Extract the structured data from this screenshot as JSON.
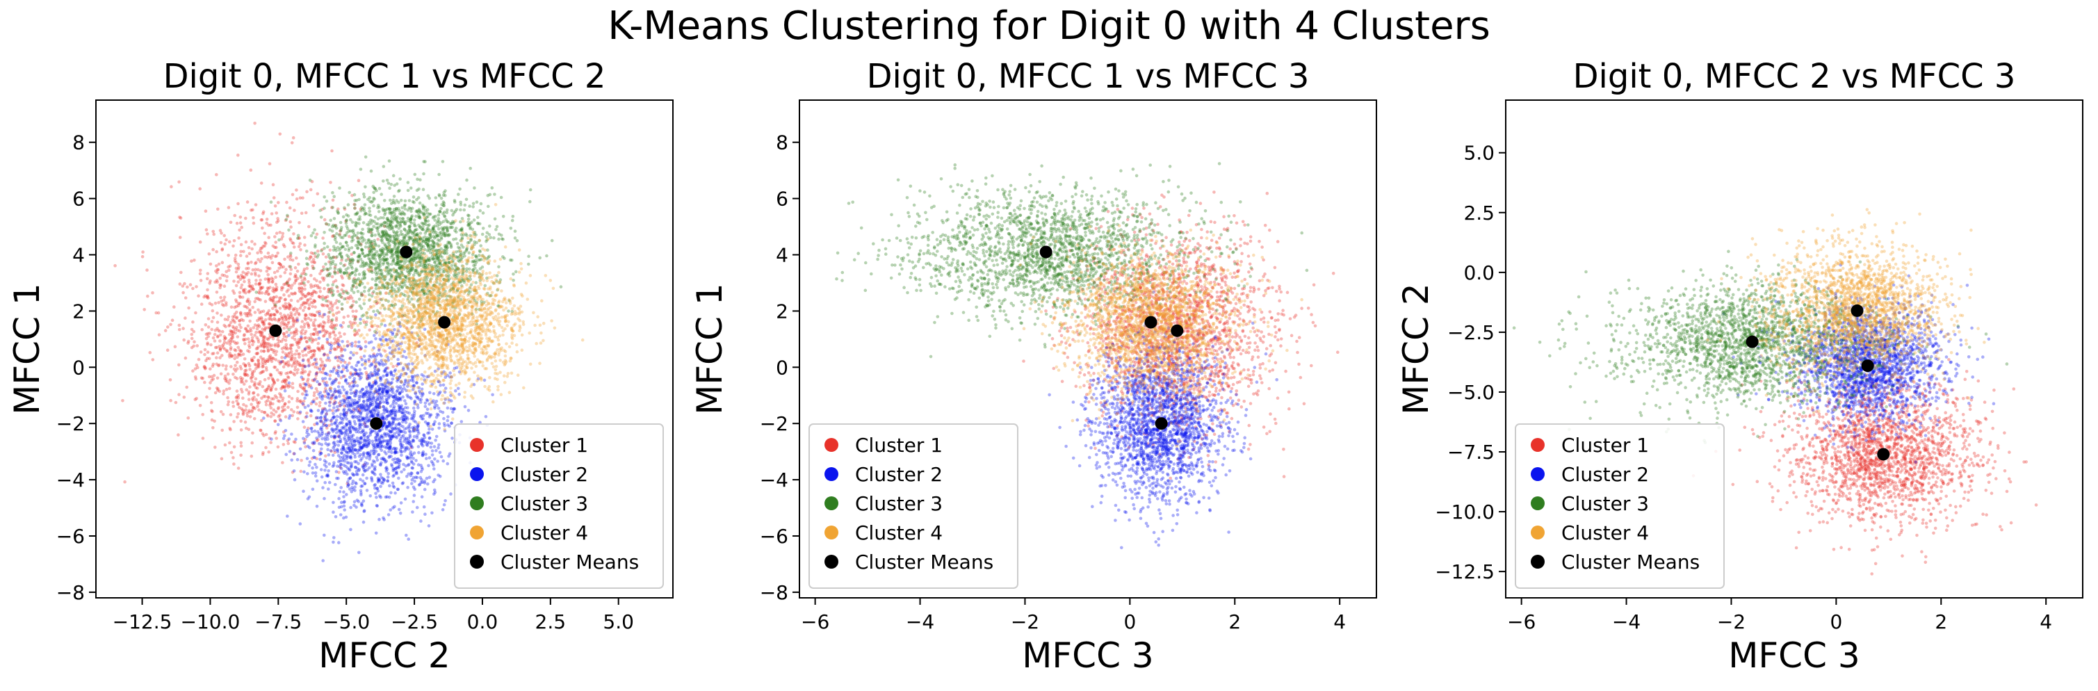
{
  "figure": {
    "suptitle": "K-Means Clustering for Digit 0 with 4 Clusters"
  },
  "colors": {
    "Cluster 1": "#e8322a",
    "Cluster 2": "#0a14ee",
    "Cluster 3": "#2f7d1f",
    "Cluster 4": "#f0a433",
    "Cluster Means": "#000000"
  },
  "chart_data": [
    {
      "type": "scatter",
      "title": "Digit 0, MFCC 1 vs MFCC 2",
      "xlabel": "MFCC 2",
      "ylabel": "MFCC 1",
      "xlim": [
        -14.2,
        7.0
      ],
      "ylim": [
        -8.2,
        9.5
      ],
      "xticks": [
        -12.5,
        -10.0,
        -7.5,
        -5.0,
        -2.5,
        0.0,
        2.5,
        5.0
      ],
      "xtick_labels": [
        "−12.5",
        "−10.0",
        "−7.5",
        "−5.0",
        "−2.5",
        "0.0",
        "2.5",
        "5.0"
      ],
      "yticks": [
        -8,
        -6,
        -4,
        -2,
        0,
        2,
        4,
        6,
        8
      ],
      "ytick_labels": [
        "−8",
        "−6",
        "−4",
        "−2",
        "0",
        "2",
        "4",
        "6",
        "8"
      ],
      "legend": {
        "position": "lower right",
        "entries": [
          "Cluster 1",
          "Cluster 2",
          "Cluster 3",
          "Cluster 4",
          "Cluster Means"
        ]
      },
      "grid": false,
      "clusters": [
        {
          "name": "Cluster 1",
          "center": [
            -7.6,
            1.3
          ],
          "spread": [
            1.7,
            2.0
          ],
          "n": 1900
        },
        {
          "name": "Cluster 2",
          "center": [
            -3.9,
            -2.0
          ],
          "spread": [
            1.3,
            1.4
          ],
          "n": 1900
        },
        {
          "name": "Cluster 3",
          "center": [
            -2.8,
            4.1
          ],
          "spread": [
            1.6,
            1.1
          ],
          "n": 1900
        },
        {
          "name": "Cluster 4",
          "center": [
            -1.4,
            1.6
          ],
          "spread": [
            1.3,
            1.2
          ],
          "n": 1900
        }
      ],
      "means": [
        [
          -7.6,
          1.3
        ],
        [
          -3.9,
          -2.0
        ],
        [
          -2.8,
          4.1
        ],
        [
          -1.4,
          1.6
        ]
      ]
    },
    {
      "type": "scatter",
      "title": "Digit 0, MFCC 1 vs MFCC 3",
      "xlabel": "MFCC 3",
      "ylabel": "MFCC 1",
      "xlim": [
        -6.3,
        4.7
      ],
      "ylim": [
        -8.2,
        9.5
      ],
      "xticks": [
        -6,
        -4,
        -2,
        0,
        2,
        4
      ],
      "xtick_labels": [
        "−6",
        "−4",
        "−2",
        "0",
        "2",
        "4"
      ],
      "yticks": [
        -8,
        -6,
        -4,
        -2,
        0,
        2,
        4,
        6,
        8
      ],
      "ytick_labels": [
        "−8",
        "−6",
        "−4",
        "−2",
        "0",
        "2",
        "4",
        "6",
        "8"
      ],
      "legend": {
        "position": "lower left",
        "entries": [
          "Cluster 1",
          "Cluster 2",
          "Cluster 3",
          "Cluster 4",
          "Cluster Means"
        ]
      },
      "grid": false,
      "clusters": [
        {
          "name": "Cluster 1",
          "center": [
            0.9,
            1.3
          ],
          "spread": [
            0.9,
            1.7
          ],
          "n": 1900
        },
        {
          "name": "Cluster 2",
          "center": [
            0.6,
            -2.0
          ],
          "spread": [
            0.6,
            1.4
          ],
          "n": 1900
        },
        {
          "name": "Cluster 3",
          "center": [
            -1.6,
            4.1
          ],
          "spread": [
            1.3,
            1.1
          ],
          "n": 1900
        },
        {
          "name": "Cluster 4",
          "center": [
            0.4,
            1.6
          ],
          "spread": [
            0.8,
            1.2
          ],
          "n": 1900
        }
      ],
      "means": [
        [
          0.9,
          1.3
        ],
        [
          0.6,
          -2.0
        ],
        [
          -1.6,
          4.1
        ],
        [
          0.4,
          1.6
        ]
      ]
    },
    {
      "type": "scatter",
      "title": "Digit 0, MFCC 2 vs MFCC 3",
      "xlabel": "MFCC 3",
      "ylabel": "MFCC 2",
      "xlim": [
        -6.3,
        4.7
      ],
      "ylim": [
        -13.6,
        7.2
      ],
      "xticks": [
        -6,
        -4,
        -2,
        0,
        2,
        4
      ],
      "xtick_labels": [
        "−6",
        "−4",
        "−2",
        "0",
        "2",
        "4"
      ],
      "yticks": [
        -12.5,
        -10.0,
        -7.5,
        -5.0,
        -2.5,
        0.0,
        2.5,
        5.0
      ],
      "ytick_labels": [
        "−12.5",
        "−10.0",
        "−7.5",
        "−5.0",
        "−2.5",
        "0.0",
        "2.5",
        "5.0"
      ],
      "legend": {
        "position": "lower left",
        "entries": [
          "Cluster 1",
          "Cluster 2",
          "Cluster 3",
          "Cluster 4",
          "Cluster Means"
        ]
      },
      "grid": false,
      "clusters": [
        {
          "name": "Cluster 1",
          "center": [
            0.9,
            -7.6
          ],
          "spread": [
            0.9,
            1.4
          ],
          "n": 1900
        },
        {
          "name": "Cluster 2",
          "center": [
            0.6,
            -3.9
          ],
          "spread": [
            0.7,
            1.2
          ],
          "n": 1900
        },
        {
          "name": "Cluster 3",
          "center": [
            -1.6,
            -2.9
          ],
          "spread": [
            1.2,
            1.2
          ],
          "n": 1900
        },
        {
          "name": "Cluster 4",
          "center": [
            0.4,
            -1.6
          ],
          "spread": [
            0.8,
            1.4
          ],
          "n": 1900
        }
      ],
      "means": [
        [
          0.9,
          -7.6
        ],
        [
          0.6,
          -3.9
        ],
        [
          -1.6,
          -2.9
        ],
        [
          0.4,
          -1.6
        ]
      ]
    }
  ]
}
